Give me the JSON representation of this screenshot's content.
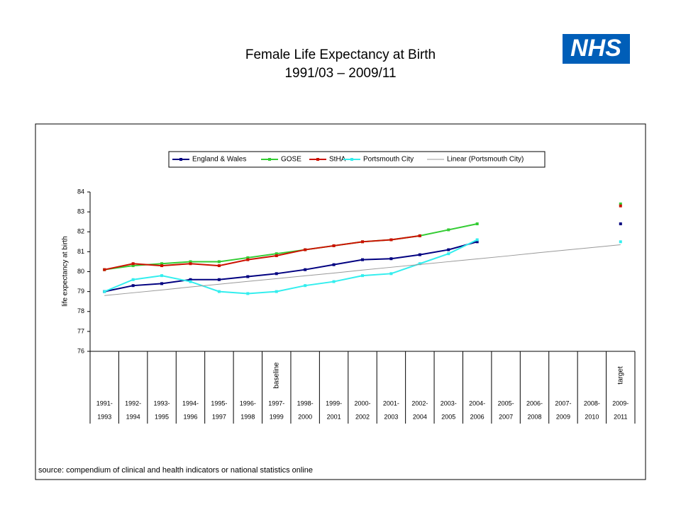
{
  "logo": "NHS",
  "chart_data": {
    "type": "line",
    "title": "Female Life Expectancy at Birth",
    "subtitle": "1991/03 – 2009/11",
    "y_label": "life expectancy at birth",
    "source": "source: compendium of clinical and health indicators or national statistics online",
    "annotations": [
      {
        "text": "baseline",
        "category": 6
      },
      {
        "text": "target",
        "category": 18
      }
    ],
    "categories": [
      [
        "1991-",
        "1993"
      ],
      [
        "1992-",
        "1994"
      ],
      [
        "1993-",
        "1995"
      ],
      [
        "1994-",
        "1996"
      ],
      [
        "1995-",
        "1997"
      ],
      [
        "1996-",
        "1998"
      ],
      [
        "1997-",
        "1999"
      ],
      [
        "1998-",
        "2000"
      ],
      [
        "1999-",
        "2001"
      ],
      [
        "2000-",
        "2002"
      ],
      [
        "2001-",
        "2003"
      ],
      [
        "2002-",
        "2004"
      ],
      [
        "2003-",
        "2005"
      ],
      [
        "2004-",
        "2006"
      ],
      [
        "2005-",
        "2007"
      ],
      [
        "2006-",
        "2008"
      ],
      [
        "2007-",
        "2009"
      ],
      [
        "2008-",
        "2010"
      ],
      [
        "2009-",
        "2011"
      ]
    ],
    "ylim": [
      76,
      84
    ],
    "yticks": [
      76,
      77,
      78,
      79,
      80,
      81,
      82,
      83,
      84
    ],
    "grid": false,
    "legend": "top",
    "series": [
      {
        "name": "England & Wales",
        "color": "#000080",
        "markers": true,
        "values": [
          79.0,
          79.3,
          79.4,
          79.6,
          79.6,
          79.75,
          79.9,
          80.1,
          80.35,
          80.6,
          80.65,
          80.85,
          81.1,
          81.5,
          null,
          null,
          null,
          null,
          82.4
        ]
      },
      {
        "name": "GOSE",
        "color": "#33cc33",
        "markers": true,
        "values": [
          80.1,
          80.3,
          80.4,
          80.5,
          80.5,
          80.7,
          80.9,
          81.1,
          81.3,
          81.5,
          81.6,
          81.8,
          82.1,
          82.4,
          null,
          null,
          null,
          null,
          83.4
        ]
      },
      {
        "name": "StHA",
        "color": "#cc1100",
        "markers": true,
        "values": [
          80.1,
          80.4,
          80.3,
          80.4,
          80.3,
          80.6,
          80.8,
          81.1,
          81.3,
          81.5,
          81.6,
          81.8,
          null,
          null,
          null,
          null,
          null,
          null,
          83.3
        ]
      },
      {
        "name": "Portsmouth City",
        "color": "#33eeee",
        "markers": true,
        "values": [
          79.0,
          79.6,
          79.8,
          79.5,
          79.0,
          78.9,
          79.0,
          79.3,
          79.5,
          79.8,
          79.9,
          80.4,
          80.9,
          81.6,
          null,
          null,
          null,
          null,
          81.5
        ]
      },
      {
        "name": "Linear (Portsmouth City)",
        "color": "#999999",
        "markers": false,
        "values": [
          78.8,
          78.94,
          79.08,
          79.23,
          79.37,
          79.51,
          79.65,
          79.79,
          79.93,
          80.08,
          80.22,
          80.36,
          80.5,
          80.64,
          80.78,
          80.93,
          81.07,
          81.21,
          81.35
        ]
      }
    ]
  }
}
